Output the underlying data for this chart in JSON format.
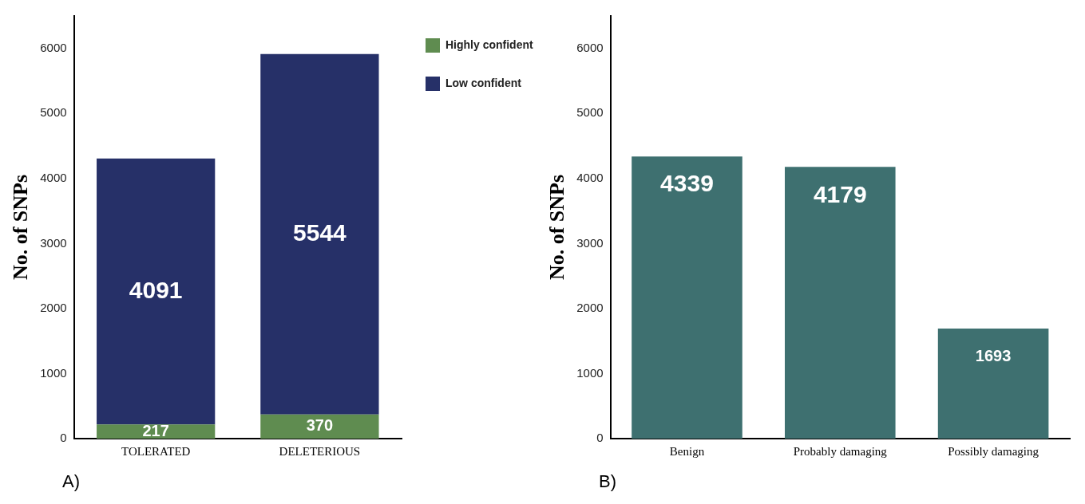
{
  "chart_data": [
    {
      "type": "bar",
      "stacked": true,
      "categories": [
        "TOLERATED",
        "DELETERIOUS"
      ],
      "series": [
        {
          "name": "Highly confident",
          "color": "#5f8c50",
          "values": [
            217,
            370
          ]
        },
        {
          "name": "Low confident",
          "color": "#263068",
          "values": [
            4091,
            5544
          ]
        }
      ],
      "ylabel": "No. of SNPs",
      "ylim": [
        0,
        6500
      ],
      "yticks": [
        0,
        1000,
        2000,
        3000,
        4000,
        5000,
        6000
      ],
      "data_labels": true,
      "legend": "right",
      "annotations": [
        "A)"
      ]
    },
    {
      "type": "bar",
      "categories": [
        "Benign",
        "Probably damaging",
        "Possibly damaging"
      ],
      "series": [
        {
          "color": "#3e7070",
          "values": [
            4339,
            4179,
            1693
          ]
        }
      ],
      "ylabel": "No. of SNPs",
      "ylim": [
        0,
        6500
      ],
      "yticks": [
        0,
        1000,
        2000,
        3000,
        4000,
        5000,
        6000
      ],
      "data_labels": true,
      "annotations": [
        "B)"
      ]
    }
  ]
}
